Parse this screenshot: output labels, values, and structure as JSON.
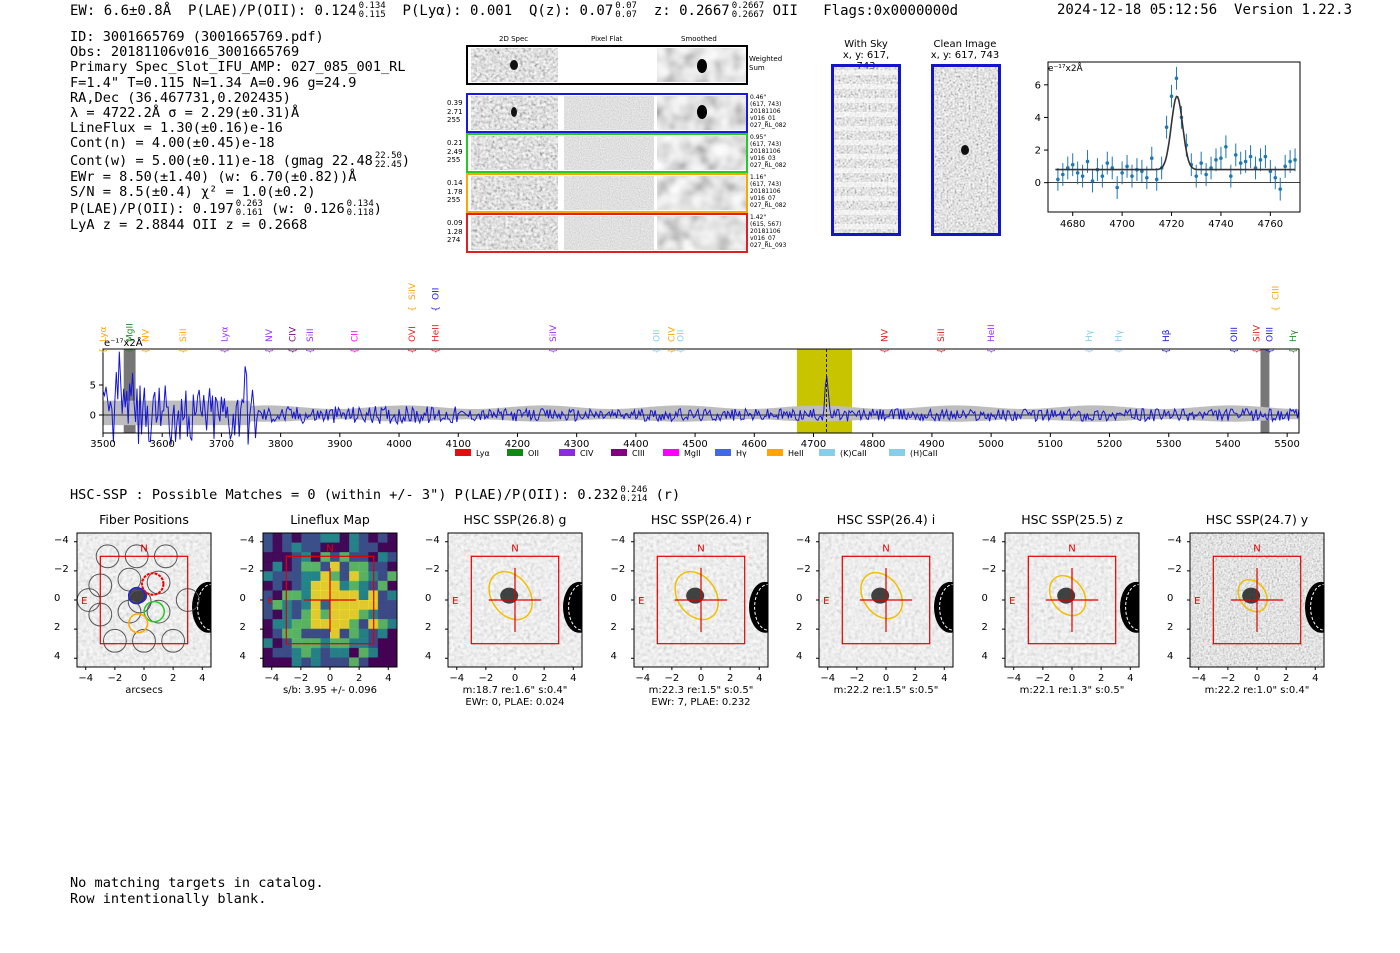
{
  "header": {
    "ew": "EW: 6.6±0.8Å",
    "plae": "P(LAE)/P(OII): 0.124",
    "plae_hi": "0.134",
    "plae_lo": "0.115",
    "plya": "P(Lyα): 0.001",
    "qz": "Q(z): 0.07",
    "qz_hi": "0.07",
    "qz_lo": "0.07",
    "z": "z: 0.2667",
    "z_hi": "0.2667",
    "z_lo": "0.2667",
    "z_line": "OII",
    "flags": "Flags:0x0000000d",
    "timestamp": "2024-12-18 05:12:56",
    "version": "Version 1.22.3"
  },
  "info": {
    "id": "ID: 3001665769 (3001665769.pdf)",
    "obs": "Obs: 20181106v016_3001665769",
    "primary": "Primary Spec_Slot_IFU_AMP: 027_085_001_RL",
    "params": "F=1.4\"  T=0.115  N=1.34  A=0.96  g=24.9",
    "radec": "RA,Dec (36.467731,0.202435)",
    "lambda": "λ = 4722.2Å   σ = 2.29(±0.31)Å",
    "lineflux": "LineFlux = 1.30(±0.16)e-16",
    "contn": "Cont(n) = 4.00(±0.45)e-18",
    "contw": "Cont(w) = 5.00(±0.11)e-18 (gmag 22.48",
    "gmag_hi": "22.50",
    "gmag_lo": "22.45",
    "contw_end": ")",
    "ewr": "EWr = 8.50(±1.40) (w: 6.70(±0.82))Å",
    "sn": "S/N = 8.5(±0.4)  χ² = 1.0(±0.2)",
    "plae2": "P(LAE)/P(OII): 0.197",
    "plae2_hi": "0.263",
    "plae2_lo": "0.161",
    "plae2_w": "(w: 0.126",
    "plae2_w_hi": "0.134",
    "plae2_w_lo": "0.118",
    "plae2_end": ")",
    "lyaz": "LyA z = 2.8844   OII z = 0.2668"
  },
  "fibers": {
    "col_2d": "2D Spec",
    "col_flat": "Pixel Flat",
    "col_smooth": "Smoothed",
    "weighted": "Weighted Sum",
    "rows": [
      {
        "left": [
          "0.39",
          "2.71",
          "255"
        ],
        "right": [
          "0.46\"",
          "(617, 743)",
          "20181106",
          "v016_01",
          "027_RL_082"
        ],
        "color": "#1a1adc"
      },
      {
        "left": [
          "0.21",
          "2.49",
          "255"
        ],
        "right": [
          "0.95\"",
          "(617, 743)",
          "20181106",
          "v016_03",
          "027_RL_082"
        ],
        "color": "#22cc22"
      },
      {
        "left": [
          "0.14",
          "1.78",
          "255"
        ],
        "right": [
          "1.16\"",
          "(617, 743)",
          "20181106",
          "v016_07",
          "027_RL_082"
        ],
        "color": "#ffa500"
      },
      {
        "left": [
          "0.09",
          "1.28",
          "274"
        ],
        "right": [
          "1.42\"",
          "(615, 567)",
          "20181106",
          "v016_07",
          "027_RL_093"
        ],
        "color": "#e02020"
      }
    ]
  },
  "sky": {
    "with_sky": "With Sky",
    "with_sky_xy": "x, y: 617, 743",
    "clean": "Clean Image",
    "clean_xy": "x, y: 617, 743"
  },
  "zoom_chart": {
    "type": "scatter",
    "ylabel": "e⁻¹⁷x2Å",
    "xlim": [
      4670,
      4772
    ],
    "ylim": [
      -1.8,
      7.4
    ],
    "xticks": [
      4680,
      4700,
      4720,
      4740,
      4760
    ],
    "xtick_labels": [
      "4680",
      "4700",
      "4720",
      "4740",
      "4760"
    ],
    "yticks": [
      0,
      2,
      4,
      6
    ],
    "ytick_labels": [
      "0",
      "2",
      "4",
      "6"
    ],
    "x": [
      4674,
      4676,
      4678,
      4680,
      4682,
      4684,
      4686,
      4688,
      4690,
      4692,
      4694,
      4696,
      4698,
      4700,
      4702,
      4704,
      4706,
      4708,
      4710,
      4712,
      4714,
      4716,
      4718,
      4720,
      4722,
      4724,
      4726,
      4728,
      4730,
      4732,
      4734,
      4736,
      4738,
      4740,
      4742,
      4744,
      4746,
      4748,
      4750,
      4752,
      4754,
      4756,
      4758,
      4760,
      4762,
      4764,
      4766,
      4768,
      4770
    ],
    "y": [
      0.2,
      0.5,
      0.9,
      1.1,
      0.6,
      0.4,
      1.3,
      0.1,
      0.8,
      0.4,
      1.2,
      0.9,
      -0.3,
      0.6,
      1.0,
      0.4,
      0.8,
      0.7,
      0.3,
      1.5,
      0.2,
      0.9,
      3.4,
      5.3,
      6.4,
      4.0,
      2.3,
      1.1,
      0.4,
      1.2,
      0.5,
      0.9,
      1.4,
      1.5,
      2.2,
      0.4,
      1.7,
      1.2,
      1.3,
      1.6,
      0.9,
      1.4,
      1.6,
      0.7,
      0.3,
      -0.4,
      1.0,
      1.3,
      1.4
    ],
    "err": [
      0.7,
      0.7,
      0.7,
      0.7,
      0.7,
      0.7,
      0.7,
      0.7,
      0.7,
      0.7,
      0.7,
      0.7,
      0.7,
      0.7,
      0.7,
      0.7,
      0.7,
      0.7,
      0.7,
      0.7,
      0.7,
      0.7,
      0.7,
      0.7,
      0.7,
      0.7,
      0.7,
      0.7,
      0.7,
      0.7,
      0.7,
      0.7,
      0.7,
      0.7,
      0.7,
      0.7,
      0.7,
      0.7,
      0.7,
      0.7,
      0.7,
      0.7,
      0.7,
      0.7,
      0.7,
      0.7,
      0.7,
      0.7,
      0.7
    ],
    "fit": {
      "center": 4722.2,
      "sigma": 2.29,
      "amplitude": 4.5,
      "baseline": 0.8
    }
  },
  "full_spectrum": {
    "type": "line",
    "ylabel": "e⁻¹⁷x2Å",
    "xlim": [
      3500,
      5520
    ],
    "ylim": [
      -3,
      11
    ],
    "xticks": [
      3500,
      3600,
      3700,
      3800,
      3900,
      4000,
      4100,
      4200,
      4300,
      4400,
      4500,
      4600,
      4700,
      4800,
      4900,
      5000,
      5100,
      5200,
      5300,
      5400,
      5500
    ],
    "xtick_labels": [
      "3500",
      "3600",
      "3700",
      "3800",
      "3900",
      "4000",
      "4100",
      "4200",
      "4300",
      "4400",
      "4500",
      "4600",
      "4700",
      "4800",
      "4900",
      "5000",
      "5100",
      "5200",
      "5300",
      "5400",
      "5500"
    ],
    "yticks": [
      0,
      5
    ],
    "ytick_labels": [
      "0",
      "5"
    ],
    "highlight": [
      4672,
      4765
    ],
    "marker": 4722,
    "bad_regions": [
      [
        3535,
        3555
      ],
      [
        5455,
        5470
      ]
    ],
    "line_labels": [
      {
        "w": 3500,
        "t": "Lyα",
        "c": "#ffa500"
      },
      {
        "w": 3545,
        "t": "MgII",
        "c": "#228b22"
      },
      {
        "w": 3572,
        "t": "NV",
        "c": "#ffa500"
      },
      {
        "w": 3635,
        "t": "SiII",
        "c": "#ffa500"
      },
      {
        "w": 3705,
        "t": "Lyα",
        "c": "#9b30ff"
      },
      {
        "w": 3780,
        "t": "NV",
        "c": "#9b30ff"
      },
      {
        "w": 3820,
        "t": "CIV",
        "c": "#800080"
      },
      {
        "w": 3850,
        "t": "SiII",
        "c": "#9b30ff"
      },
      {
        "w": 3925,
        "t": "CII",
        "c": "#ff00ff"
      },
      {
        "w": 4022,
        "t": "OVI",
        "c": "#e02020"
      },
      {
        "w": 4062,
        "t": "HeII",
        "c": "#e02020"
      },
      {
        "w": 4260,
        "t": "SiIV",
        "c": "#9b30ff"
      },
      {
        "w": 4435,
        "t": "OII",
        "c": "#87ceeb"
      },
      {
        "w": 4460,
        "t": "CIV",
        "c": "#ffa500"
      },
      {
        "w": 4475,
        "t": "OII",
        "c": "#87ceeb"
      },
      {
        "w": 4820,
        "t": "NV",
        "c": "#e02020"
      },
      {
        "w": 4915,
        "t": "SiII",
        "c": "#e02020"
      },
      {
        "w": 5000,
        "t": "HeII",
        "c": "#9b30ff"
      },
      {
        "w": 5165,
        "t": "Hγ",
        "c": "#87ceeb"
      },
      {
        "w": 5215,
        "t": "Hγ",
        "c": "#87ceeb"
      },
      {
        "w": 5295,
        "t": "Hβ",
        "c": "#1a1adc"
      },
      {
        "w": 5410,
        "t": "OIII",
        "c": "#1a1adc"
      },
      {
        "w": 5448,
        "t": "SiIV",
        "c": "#e02020"
      },
      {
        "w": 5470,
        "t": "OIII",
        "c": "#1a1adc"
      },
      {
        "w": 5510,
        "t": "Hγ",
        "c": "#228b22"
      }
    ],
    "top_labels": [
      {
        "w": 4022,
        "t": "SiIV",
        "c": "#ffa500"
      },
      {
        "w": 4062,
        "t": "OII",
        "c": "#1a1adc"
      },
      {
        "w": 5480,
        "t": "CIII",
        "c": "#ffa500"
      }
    ],
    "legend": [
      {
        "label": "Lyα",
        "color": "#e01010"
      },
      {
        "label": "OII",
        "color": "#118811"
      },
      {
        "label": "CIV",
        "color": "#8a2be2"
      },
      {
        "label": "CIII",
        "color": "#800080"
      },
      {
        "label": "MgII",
        "color": "#ff00ff"
      },
      {
        "label": "Hγ",
        "color": "#4169e1"
      },
      {
        "label": "HeII",
        "color": "#ffa500"
      },
      {
        "label": "(K)CaII",
        "color": "#87ceeb"
      },
      {
        "label": "(H)CaII",
        "color": "#87ceeb"
      }
    ]
  },
  "hsc": {
    "summary": "HSC-SSP : Possible Matches = 0 (within +/- 3\")  P(LAE)/P(OII): 0.232",
    "summary_hi": "0.246",
    "summary_lo": "0.214",
    "summary_band": "(r)",
    "axis_ticks": [
      "−4",
      "−2",
      "0",
      "2",
      "4"
    ],
    "north": "N",
    "east": "E",
    "panels": [
      {
        "title": "Fiber Positions",
        "cap1": "arcsecs",
        "cap2": "",
        "kind": "fiber"
      },
      {
        "title": "Lineflux Map",
        "cap1": "s/b: 3.95 +/- 0.096",
        "cap2": "",
        "kind": "flux"
      },
      {
        "title": "HSC SSP(26.8) g",
        "cap1": "m:18.7  re:1.6\"  s:0.4\"",
        "cap2": "EWr: 0, PLAE: 0.024",
        "kind": "img"
      },
      {
        "title": "HSC SSP(26.4) r",
        "cap1": "m:22.3  re:1.5\"  s:0.5\"",
        "cap2": "EWr: 7, PLAE: 0.232",
        "kind": "img"
      },
      {
        "title": "HSC SSP(26.4) i",
        "cap1": "m:22.2  re:1.5\"  s:0.5\"",
        "cap2": "",
        "kind": "img"
      },
      {
        "title": "HSC SSP(25.5) z",
        "cap1": "m:22.1  re:1.3\"  s:0.5\"",
        "cap2": "",
        "kind": "img"
      },
      {
        "title": "HSC SSP(24.7) y",
        "cap1": "m:22.2  re:1.0\"  s:0.4\"",
        "cap2": "",
        "kind": "img"
      }
    ]
  },
  "footer": {
    "line1": "No matching targets in catalog.",
    "line2": "Row intentionally blank."
  }
}
